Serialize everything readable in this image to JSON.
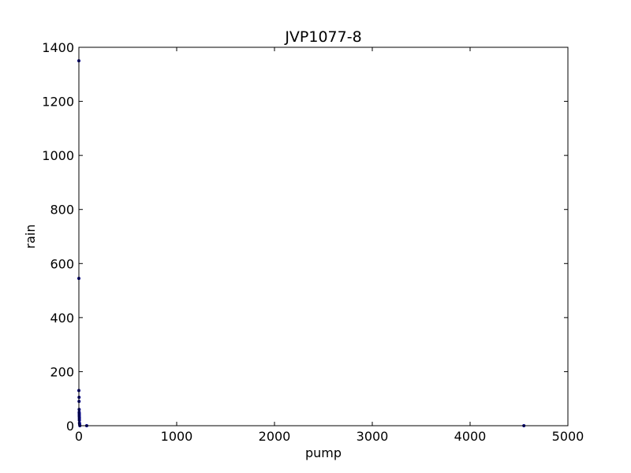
{
  "chart_data": {
    "type": "scatter",
    "title": "JVP1077-8",
    "xlabel": "pump",
    "ylabel": "rain",
    "xlim": [
      0,
      5000
    ],
    "ylim": [
      0,
      1400
    ],
    "x_ticks": [
      0,
      1000,
      2000,
      3000,
      4000,
      5000
    ],
    "y_ticks": [
      0,
      200,
      400,
      600,
      800,
      1000,
      1200,
      1400
    ],
    "x_tick_labels": [
      "0",
      "1000",
      "2000",
      "3000",
      "4000",
      "5000"
    ],
    "y_tick_labels": [
      "0",
      "200",
      "400",
      "600",
      "800",
      "1000",
      "1200",
      "1400"
    ],
    "grid": false,
    "marker_color": "#00007f",
    "series": [
      {
        "x": [
          0,
          0,
          0,
          2,
          2,
          3,
          3,
          4,
          4,
          4,
          5,
          5,
          5,
          6,
          8,
          10,
          80,
          4550
        ],
        "y": [
          1350,
          545,
          130,
          105,
          90,
          60,
          50,
          45,
          40,
          35,
          30,
          25,
          20,
          10,
          5,
          0,
          0,
          0
        ]
      }
    ]
  }
}
